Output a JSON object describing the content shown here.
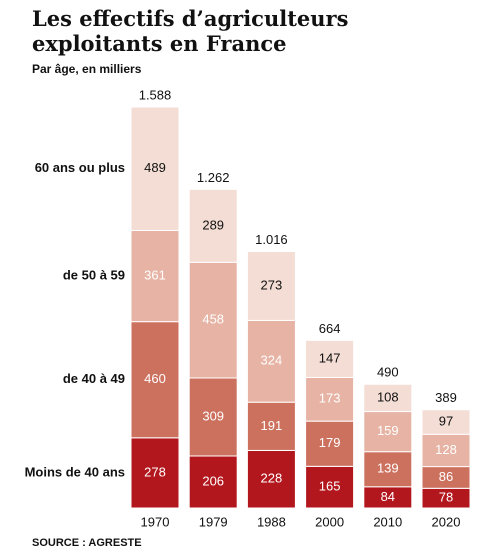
{
  "chart_data": {
    "type": "stacked_bar",
    "title": "Les effectifs d’agriculteurs exploitants en France",
    "subtitle": "Par âge, en milliers",
    "source": "SOURCE : AGRESTE",
    "categories": [
      "1970",
      "1979",
      "1988",
      "2000",
      "2010",
      "2020"
    ],
    "series": [
      {
        "name": "Moins de 40 ans",
        "color": "#b3171e",
        "values": [
          278,
          206,
          228,
          165,
          84,
          78
        ]
      },
      {
        "name": "de 40 à 49",
        "color": "#cd715f",
        "values": [
          460,
          309,
          191,
          179,
          139,
          86
        ]
      },
      {
        "name": "de 50 à 59",
        "color": "#e6b3a4",
        "values": [
          361,
          458,
          324,
          173,
          159,
          128
        ]
      },
      {
        "name": "60 ans ou plus",
        "color": "#f4ddd4",
        "values": [
          489,
          289,
          273,
          147,
          108,
          97
        ]
      }
    ],
    "totals": {
      "values": [
        1588,
        1262,
        1016,
        664,
        490,
        389
      ],
      "value_labels": [
        "1.588",
        "1.262",
        "1.016",
        "664",
        "490",
        "389"
      ]
    }
  }
}
